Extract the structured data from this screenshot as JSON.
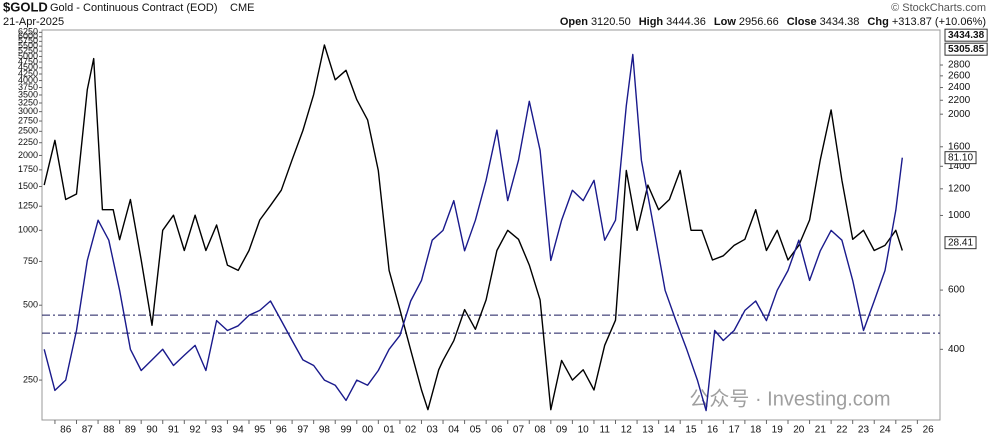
{
  "chart_data": {
    "type": "line",
    "symbol": "$GOLD",
    "title": "Gold - Continuous Contract (EOD)",
    "exchange": "CME",
    "date": "21-Apr-2025",
    "quote": [
      {
        "label": "Open",
        "value": "3120.50"
      },
      {
        "label": "High",
        "value": "3444.36"
      },
      {
        "label": "Low",
        "value": "2956.66"
      },
      {
        "label": "Close",
        "value": "3434.38"
      },
      {
        "label": "Chg",
        "value": "+313.87 (+10.06%)"
      }
    ],
    "credit": "© StockCharts.com",
    "watermark": "公众号 · Investing.com",
    "log_scale": true,
    "xlim": [
      1985.4,
      2027.05
    ],
    "xticks": [
      {
        "value": 1986,
        "label": "86"
      },
      {
        "value": 1987,
        "label": "87"
      },
      {
        "value": 1988,
        "label": "88"
      },
      {
        "value": 1989,
        "label": "89"
      },
      {
        "value": 1990,
        "label": "90"
      },
      {
        "value": 1991,
        "label": "91"
      },
      {
        "value": 1992,
        "label": "92"
      },
      {
        "value": 1993,
        "label": "93"
      },
      {
        "value": 1994,
        "label": "94"
      },
      {
        "value": 1995,
        "label": "95"
      },
      {
        "value": 1996,
        "label": "96"
      },
      {
        "value": 1997,
        "label": "97"
      },
      {
        "value": 1998,
        "label": "98"
      },
      {
        "value": 1999,
        "label": "99"
      },
      {
        "value": 2000,
        "label": "00"
      },
      {
        "value": 2001,
        "label": "01"
      },
      {
        "value": 2002,
        "label": "02"
      },
      {
        "value": 2003,
        "label": "03"
      },
      {
        "value": 2004,
        "label": "04"
      },
      {
        "value": 2005,
        "label": "05"
      },
      {
        "value": 2006,
        "label": "06"
      },
      {
        "value": 2007,
        "label": "07"
      },
      {
        "value": 2008,
        "label": "08"
      },
      {
        "value": 2009,
        "label": "09"
      },
      {
        "value": 2010,
        "label": "10"
      },
      {
        "value": 2011,
        "label": "11"
      },
      {
        "value": 2012,
        "label": "12"
      },
      {
        "value": 2013,
        "label": "13"
      },
      {
        "value": 2014,
        "label": "14"
      },
      {
        "value": 2015,
        "label": "15"
      },
      {
        "value": 2016,
        "label": "16"
      },
      {
        "value": 2017,
        "label": "17"
      },
      {
        "value": 2018,
        "label": "18"
      },
      {
        "value": 2019,
        "label": "19"
      },
      {
        "value": 2020,
        "label": "20"
      },
      {
        "value": 2021,
        "label": "21"
      },
      {
        "value": 2022,
        "label": "22"
      },
      {
        "value": 2023,
        "label": "23"
      },
      {
        "value": 2024,
        "label": "24"
      },
      {
        "value": 2025,
        "label": "25"
      },
      {
        "value": 2026,
        "label": "26"
      }
    ],
    "ylim": [
      176,
      6270
    ],
    "yticks": [
      250,
      500,
      750,
      1000,
      1250,
      1500,
      1750,
      2000,
      2250,
      2500,
      2750,
      3000,
      3250,
      3500,
      3750,
      4000,
      4250,
      4500,
      4750,
      5000,
      5250,
      5500,
      5750,
      6000,
      6250
    ],
    "y2lim": [
      250,
      3510
    ],
    "y2ticks": [
      400,
      600,
      1000,
      1200,
      1400,
      1600,
      2000,
      2200,
      2400,
      2600,
      2800
    ],
    "reference_lines": [
      456,
      386
    ],
    "series": [
      {
        "color": "#000000",
        "x": [
          1985.5,
          1986,
          1986.5,
          1987,
          1987.5,
          1987.8,
          1988.2,
          1988.7,
          1989,
          1989.5,
          1990,
          1990.5,
          1991,
          1991.5,
          1992,
          1992.5,
          1993,
          1993.5,
          1994,
          1994.5,
          1995,
          1995.5,
          1996,
          1996.5,
          1997,
          1997.5,
          1998,
          1998.5,
          1999,
          1999.5,
          2000,
          2000.5,
          2001,
          2001.5,
          2002,
          2002.5,
          2003,
          2003.3,
          2003.8,
          2004,
          2004.5,
          2005,
          2005.5,
          2006,
          2006.5,
          2007,
          2007.5,
          2008,
          2008.5,
          2009,
          2009.5,
          2010,
          2010.5,
          2011,
          2011.5,
          2012,
          2012.5,
          2013,
          2013.5,
          2014,
          2014.5,
          2015,
          2015.5,
          2016,
          2016.5,
          2017,
          2017.5,
          2018,
          2018.5,
          2019,
          2019.5,
          2020,
          2020.5,
          2021,
          2021.5,
          2022,
          2022.5,
          2023,
          2023.5,
          2024,
          2024.5,
          2025,
          2025.3
        ],
        "values": [
          1520,
          2300,
          1330,
          1400,
          3680,
          4900,
          1210,
          1210,
          917,
          1330,
          760,
          415,
          1000,
          1150,
          830,
          1150,
          830,
          1050,
          725,
          690,
          830,
          1100,
          1260,
          1450,
          1920,
          2520,
          3520,
          5560,
          4030,
          4400,
          3350,
          2780,
          1740,
          690,
          480,
          330,
          228,
          190,
          275,
          300,
          360,
          480,
          400,
          525,
          830,
          1000,
          920,
          725,
          525,
          190,
          300,
          250,
          275,
          228,
          345,
          435,
          1740,
          1000,
          1520,
          1210,
          1330,
          1740,
          1000,
          1000,
          760,
          790,
          870,
          920,
          1210,
          830,
          1000,
          760,
          870,
          1100,
          1920,
          3050,
          1590,
          920,
          1000,
          830,
          870,
          1000,
          830
        ]
      },
      {
        "color": "#1a1a8c",
        "axis": "y2",
        "x": [
          1985.5,
          1986,
          1986.5,
          1987,
          1987.5,
          1988,
          1988.5,
          1989,
          1989.5,
          1990,
          1990.5,
          1991,
          1991.5,
          1992,
          1992.5,
          1993,
          1993.5,
          1994,
          1994.5,
          1995,
          1995.5,
          1996,
          1996.5,
          1997,
          1997.5,
          1998,
          1998.5,
          1999,
          1999.5,
          2000,
          2000.5,
          2001,
          2001.5,
          2002,
          2002.5,
          2003,
          2003.5,
          2004,
          2004.5,
          2005,
          2005.5,
          2006,
          2006.5,
          2007,
          2007.5,
          2008,
          2008.5,
          2009,
          2009.5,
          2010,
          2010.5,
          2011,
          2011.5,
          2012,
          2012.5,
          2012.8,
          2013.2,
          2013.8,
          2014.3,
          2014.8,
          2015.3,
          2015.8,
          2016.2,
          2016.6,
          2017,
          2017.5,
          2018,
          2018.5,
          2019,
          2019.5,
          2020,
          2020.5,
          2021,
          2021.5,
          2022,
          2022.5,
          2023,
          2023.5,
          2024,
          2024.5,
          2025,
          2025.3
        ],
        "values": [
          400,
          302,
          324,
          455,
          735,
          968,
          844,
          599,
          400,
          346,
          372,
          400,
          358,
          384,
          411,
          346,
          487,
          455,
          470,
          505,
          522,
          557,
          487,
          425,
          372,
          358,
          324,
          313,
          282,
          324,
          313,
          346,
          400,
          440,
          557,
          641,
          844,
          903,
          1107,
          785,
          968,
          1272,
          1794,
          1107,
          1460,
          2185,
          1562,
          735,
          968,
          1188,
          1107,
          1272,
          844,
          968,
          2120,
          3010,
          1460,
          903,
          599,
          487,
          400,
          324,
          263,
          455,
          425,
          455,
          522,
          557,
          487,
          599,
          686,
          844,
          641,
          785,
          903,
          844,
          641,
          455,
          557,
          686,
          1036,
          1485
        ]
      }
    ],
    "annotations": [
      {
        "text": "3434.38",
        "y2": 3434.38
      },
      {
        "text": "5305.85"
      },
      {
        "text": "81.10",
        "y2": 1485
      },
      {
        "text": "28.41",
        "y2": 830
      }
    ]
  }
}
